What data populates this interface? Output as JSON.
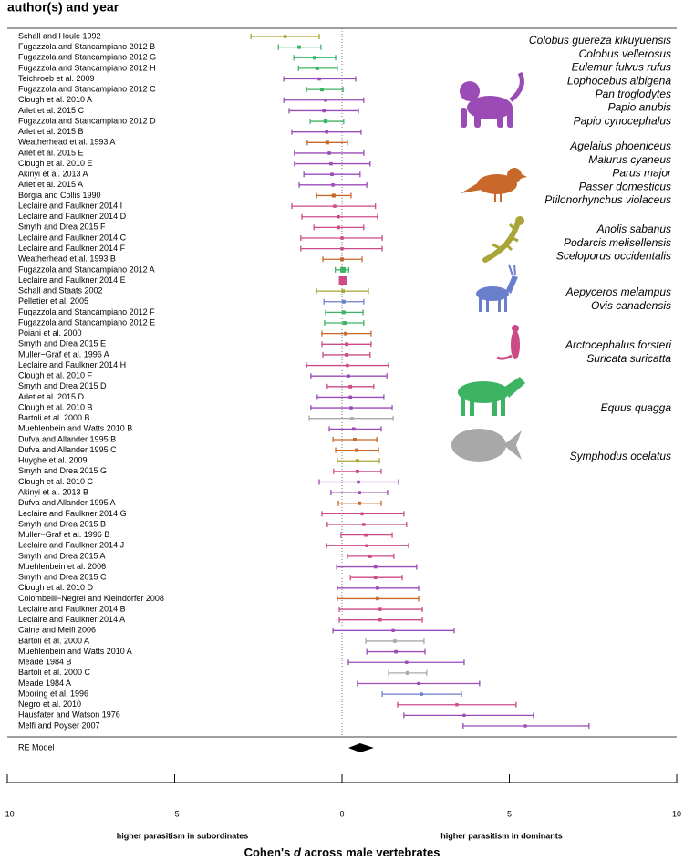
{
  "chart_data": {
    "type": "forest",
    "column_header": "author(s) and year",
    "xlim": [
      -10,
      10
    ],
    "xticks": [
      {
        "value": -10,
        "label": "−10"
      },
      {
        "value": -5,
        "label": "−5"
      },
      0,
      5,
      10
    ],
    "left_label": "higher parasitism in subordinates",
    "right_label": "higher parasitism in dominants",
    "xlabel": {
      "before": "Cohen's",
      "italic": "d",
      "after": "across male vertebrates"
    },
    "groups": [
      {
        "color": "#9a4bb5",
        "species": [
          "Colobus guereza kikuyuensis",
          "Colobus vellerosus",
          "Eulemur fulvus rufus",
          "Lophocebus albigena",
          "Pan troglodytes",
          "Papio anubis",
          "Papio cynocephalus"
        ]
      },
      {
        "color": "#c8682a",
        "species": [
          "Agelaius phoeniceus",
          "Malurus cyaneus",
          "Parus major",
          "Passer domesticus",
          "Ptilonorhynchus violaceus"
        ]
      },
      {
        "color": "#a9a536",
        "species": [
          "Anolis sabanus",
          "Podarcis melisellensis",
          "Sceloporus occidentalis"
        ]
      },
      {
        "color": "#6a7fcc",
        "species": [
          "Aepyceros melampus",
          "Ovis canadensis"
        ]
      },
      {
        "color": "#cc4a86",
        "species": [
          "Arctocephalus forsteri",
          "Suricata suricatta"
        ]
      },
      {
        "color": "#3cb464",
        "species": [
          "Equus quagga"
        ]
      },
      {
        "color": "#a8a8a8",
        "species": [
          "Symphodus ocelatus"
        ]
      }
    ],
    "rows": [
      {
        "label": "Schall and Houle 1992",
        "group": 2,
        "estimate": -1.7,
        "lower": -2.72,
        "upper": -0.68
      },
      {
        "label": "Fugazzola and Stancampiano 2012 B",
        "group": 5,
        "estimate": -1.28,
        "lower": -1.9,
        "upper": -0.63
      },
      {
        "label": "Fugazzola and Stancampiano 2012 G",
        "group": 5,
        "estimate": -0.82,
        "lower": -1.44,
        "upper": -0.19
      },
      {
        "label": "Fugazzola and Stancampiano 2012 H",
        "group": 5,
        "estimate": -0.74,
        "lower": -1.3,
        "upper": -0.14
      },
      {
        "label": "Teichroeb et al. 2009",
        "group": 0,
        "estimate": -0.68,
        "lower": -1.74,
        "upper": 0.41
      },
      {
        "label": "Fugazzola and Stancampiano 2012 C",
        "group": 5,
        "estimate": -0.6,
        "lower": -1.06,
        "upper": 0.03
      },
      {
        "label": "Clough et al. 2010 A",
        "group": 0,
        "estimate": -0.49,
        "lower": -1.74,
        "upper": 0.65
      },
      {
        "label": "Arlet et al. 2015 C",
        "group": 0,
        "estimate": -0.54,
        "lower": -1.58,
        "upper": 0.49
      },
      {
        "label": "Fugazzola and Stancampiano 2012 D",
        "group": 5,
        "estimate": -0.49,
        "lower": -0.95,
        "upper": 0.05
      },
      {
        "label": "Arlet et al. 2015 B",
        "group": 0,
        "estimate": -0.46,
        "lower": -1.5,
        "upper": 0.57
      },
      {
        "label": "Weatherhead et al. 1993 A",
        "group": 1,
        "estimate": -0.44,
        "lower": -1.04,
        "upper": 0.16
      },
      {
        "label": "Arlet et al. 2015 E",
        "group": 0,
        "estimate": -0.38,
        "lower": -1.42,
        "upper": 0.65
      },
      {
        "label": "Clough et al. 2010 E",
        "group": 0,
        "estimate": -0.33,
        "lower": -1.42,
        "upper": 0.84
      },
      {
        "label": "Akinyi et al. 2013 A",
        "group": 0,
        "estimate": -0.3,
        "lower": -1.14,
        "upper": 0.54
      },
      {
        "label": "Arlet et al. 2015 A",
        "group": 0,
        "estimate": -0.27,
        "lower": -1.28,
        "upper": 0.74
      },
      {
        "label": "Borgia and Collis 1990",
        "group": 1,
        "estimate": -0.25,
        "lower": -0.76,
        "upper": 0.27
      },
      {
        "label": "Leclaire and Faulkner 2014 I",
        "group": 4,
        "estimate": -0.22,
        "lower": -1.5,
        "upper": 1.0
      },
      {
        "label": "Leclaire and Faulkner 2014 D",
        "group": 4,
        "estimate": -0.11,
        "lower": -1.2,
        "upper": 1.06
      },
      {
        "label": "Smyth and Drea 2015 F",
        "group": 4,
        "estimate": -0.11,
        "lower": -0.84,
        "upper": 0.65
      },
      {
        "label": "Leclaire and Faulkner 2014 C",
        "group": 4,
        "estimate": 0,
        "lower": -1.23,
        "upper": 1.2
      },
      {
        "label": "Leclaire and Faulkner 2014 F",
        "group": 4,
        "estimate": 0,
        "lower": -1.23,
        "upper": 1.2
      },
      {
        "label": "Weatherhead et al. 1993 B",
        "group": 1,
        "estimate": 0,
        "lower": -0.57,
        "upper": 0.6
      },
      {
        "label": "Fugazzola and Stancampiano 2012 A",
        "group": 5,
        "estimate": 0.03,
        "lower": -0.2,
        "upper": 0.2
      },
      {
        "label": "Leclaire and Faulkner 2014 E",
        "group": 4,
        "estimate": 0.03,
        "lower": -0.07,
        "upper": 0.1
      },
      {
        "label": "Schall and Staats 2002",
        "group": 2,
        "estimate": 0.03,
        "lower": -0.76,
        "upper": 0.79
      },
      {
        "label": "Pelletier et al. 2005",
        "group": 3,
        "estimate": 0.05,
        "lower": -0.54,
        "upper": 0.65
      },
      {
        "label": "Fugazzola and Stancampiano 2012 F",
        "group": 5,
        "estimate": 0.05,
        "lower": -0.49,
        "upper": 0.63
      },
      {
        "label": "Fugazzola and Stancampiano 2012 E",
        "group": 5,
        "estimate": 0.08,
        "lower": -0.52,
        "upper": 0.65
      },
      {
        "label": "Poiani et al. 2000",
        "group": 1,
        "estimate": 0.11,
        "lower": -0.6,
        "upper": 0.87
      },
      {
        "label": "Smyth and Drea 2015 E",
        "group": 4,
        "estimate": 0.14,
        "lower": -0.6,
        "upper": 0.87
      },
      {
        "label": "Muller−Graf et al. 1996 A",
        "group": 4,
        "estimate": 0.14,
        "lower": -0.57,
        "upper": 0.84
      },
      {
        "label": "Leclaire and Faulkner 2014 H",
        "group": 4,
        "estimate": 0.16,
        "lower": -1.06,
        "upper": 1.39
      },
      {
        "label": "Clough et al. 2010 F",
        "group": 0,
        "estimate": 0.19,
        "lower": -0.93,
        "upper": 1.34
      },
      {
        "label": "Smyth and Drea 2015 D",
        "group": 4,
        "estimate": 0.25,
        "lower": -0.44,
        "upper": 0.95
      },
      {
        "label": "Arlet et al. 2015 D",
        "group": 0,
        "estimate": 0.25,
        "lower": -0.74,
        "upper": 1.25
      },
      {
        "label": "Clough et al. 2010 B",
        "group": 0,
        "estimate": 0.27,
        "lower": -0.93,
        "upper": 1.5
      },
      {
        "label": "Bartoli et al. 2000 B",
        "group": 6,
        "estimate": 0.3,
        "lower": -0.98,
        "upper": 1.53
      },
      {
        "label": "Muehlenbein and Watts 2010 B",
        "group": 0,
        "estimate": 0.35,
        "lower": -0.38,
        "upper": 1.17
      },
      {
        "label": "Dufva and Allander 1995 B",
        "group": 1,
        "estimate": 0.38,
        "lower": -0.27,
        "upper": 1.04
      },
      {
        "label": "Dufva and Allander 1995 C",
        "group": 1,
        "estimate": 0.44,
        "lower": -0.19,
        "upper": 1.09
      },
      {
        "label": "Huyghe et al. 2009",
        "group": 2,
        "estimate": 0.46,
        "lower": -0.14,
        "upper": 1.12
      },
      {
        "label": "Smyth and Drea 2015 G",
        "group": 4,
        "estimate": 0.46,
        "lower": -0.25,
        "upper": 1.17
      },
      {
        "label": "Clough et al. 2010 C",
        "group": 0,
        "estimate": 0.49,
        "lower": -0.68,
        "upper": 1.69
      },
      {
        "label": "Akinyi et al. 2013 B",
        "group": 0,
        "estimate": 0.52,
        "lower": -0.33,
        "upper": 1.36
      },
      {
        "label": "Dufva and Allander 1995 A",
        "group": 1,
        "estimate": 0.52,
        "lower": -0.11,
        "upper": 1.17
      },
      {
        "label": "Leclaire and Faulkner 2014 G",
        "group": 4,
        "estimate": 0.6,
        "lower": -0.6,
        "upper": 1.85
      },
      {
        "label": "Smyth and Drea 2015 B",
        "group": 4,
        "estimate": 0.65,
        "lower": -0.44,
        "upper": 1.93
      },
      {
        "label": "Muller−Graf et al. 1996 B",
        "group": 4,
        "estimate": 0.71,
        "lower": -0.03,
        "upper": 1.5
      },
      {
        "label": "Leclaire and Faulkner 2014 J",
        "group": 4,
        "estimate": 0.74,
        "lower": -0.46,
        "upper": 1.99
      },
      {
        "label": "Smyth and Drea 2015 A",
        "group": 4,
        "estimate": 0.84,
        "lower": 0.16,
        "upper": 1.55
      },
      {
        "label": "Muehlenbein et al. 2006",
        "group": 0,
        "estimate": 1.0,
        "lower": -0.16,
        "upper": 2.23
      },
      {
        "label": "Smyth and Drea 2015 C",
        "group": 4,
        "estimate": 1.0,
        "lower": 0.25,
        "upper": 1.8
      },
      {
        "label": "Clough et al. 2010 D",
        "group": 0,
        "estimate": 1.06,
        "lower": -0.14,
        "upper": 2.29
      },
      {
        "label": "Colombelli−Negrel and Kleindorfer 2008",
        "group": 1,
        "estimate": 1.06,
        "lower": -0.14,
        "upper": 2.29
      },
      {
        "label": "Leclaire and Faulkner 2014 B",
        "group": 4,
        "estimate": 1.14,
        "lower": -0.08,
        "upper": 2.4
      },
      {
        "label": "Leclaire and Faulkner 2014 A",
        "group": 4,
        "estimate": 1.14,
        "lower": -0.08,
        "upper": 2.4
      },
      {
        "label": "Caine and Melfi 2006",
        "group": 0,
        "estimate": 1.53,
        "lower": -0.27,
        "upper": 3.35
      },
      {
        "label": "Bartoli et al. 2000 A",
        "group": 6,
        "estimate": 1.58,
        "lower": 0.71,
        "upper": 2.45
      },
      {
        "label": "Muehlenbein and Watts 2010 A",
        "group": 0,
        "estimate": 1.61,
        "lower": 0.74,
        "upper": 2.48
      },
      {
        "label": "Meade 1984 B",
        "group": 0,
        "estimate": 1.93,
        "lower": 0.19,
        "upper": 3.65
      },
      {
        "label": "Bartoli et al. 2000 C",
        "group": 6,
        "estimate": 1.96,
        "lower": 1.39,
        "upper": 2.53
      },
      {
        "label": "Meade 1984 A",
        "group": 0,
        "estimate": 2.29,
        "lower": 0.46,
        "upper": 4.11
      },
      {
        "label": "Mooring et al. 1996",
        "group": 3,
        "estimate": 2.37,
        "lower": 1.2,
        "upper": 3.57
      },
      {
        "label": "Negro et al. 2010",
        "group": 4,
        "estimate": 3.43,
        "lower": 1.66,
        "upper": 5.2
      },
      {
        "label": "Hausfater and Watson 1976",
        "group": 0,
        "estimate": 3.65,
        "lower": 1.85,
        "upper": 5.72
      },
      {
        "label": "Melfi and Poyser 2007",
        "group": 0,
        "estimate": 5.48,
        "lower": 3.62,
        "upper": 7.38
      }
    ],
    "re_model": {
      "label": "RE Model",
      "estimate": 0.54,
      "lower": 0.19,
      "upper": 0.95
    }
  }
}
